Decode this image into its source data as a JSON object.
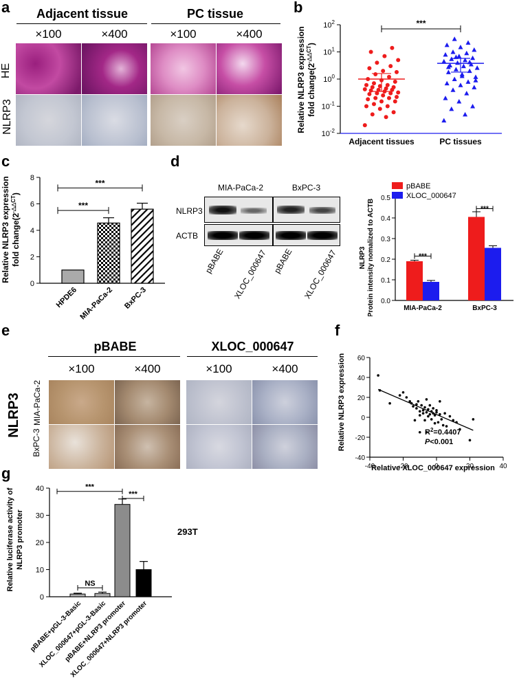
{
  "panel_labels": {
    "a": "a",
    "b": "b",
    "c": "c",
    "d": "d",
    "e": "e",
    "f": "f",
    "g": "g"
  },
  "panel_a": {
    "group1": "Adjacent tissue",
    "group2": "PC tissue",
    "mag_low": "×100",
    "mag_high": "×400",
    "row1": "HE",
    "row2": "NLRP3"
  },
  "panel_e": {
    "group1": "pBABE",
    "group2": "XLOC_000647",
    "mag_low": "×100",
    "mag_high": "×400",
    "stain": "NLRP3",
    "row1": "MIA-PaCa-2",
    "row2": "BxPC-3"
  },
  "panel_d_blot": {
    "cell1": "MIA-PaCa-2",
    "cell2": "BxPC-3",
    "band1": "NLRP3",
    "band2": "ACTB",
    "lanes": [
      "pBABE",
      "XLOC_000647",
      "pBABE",
      "XLOC_000647"
    ]
  },
  "colors": {
    "red": "#ee1c1c",
    "blue": "#1c1cee",
    "he_pink": "#c8358f",
    "ihc_bg": "#cfd4dc"
  },
  "chart_data": [
    {
      "id": "b",
      "type": "scatter",
      "ylabel_line1": "Relative NLRP3 expression",
      "ylabel_line2": "fold change(2",
      "ylabel_sup": "-△△CT",
      "ylabel_end": ")",
      "yscale": "log",
      "ylim": [
        0.01,
        100
      ],
      "yticks": [
        "10-2",
        "10-1",
        "100",
        "101",
        "102"
      ],
      "categories": [
        "Adjacent tissues",
        "PC tissues"
      ],
      "series": [
        {
          "values": [
            0.02,
            0.04,
            0.05,
            0.06,
            0.08,
            0.1,
            0.1,
            0.12,
            0.15,
            0.15,
            0.18,
            0.2,
            0.2,
            0.22,
            0.25,
            0.28,
            0.3,
            0.3,
            0.32,
            0.35,
            0.38,
            0.4,
            0.4,
            0.42,
            0.45,
            0.5,
            0.5,
            0.55,
            0.6,
            0.6,
            0.7,
            0.8,
            0.9,
            1.0,
            1.2,
            1.5,
            1.8,
            2.0,
            2.5,
            3.0,
            4.0,
            5.0,
            7.0,
            10.0,
            14.0
          ],
          "mean": 1.0,
          "sd": [
            0.35,
            1.6
          ]
        },
        {
          "values": [
            0.03,
            0.05,
            0.08,
            0.1,
            0.15,
            0.2,
            0.3,
            0.4,
            0.5,
            0.6,
            0.7,
            0.8,
            1.0,
            1.2,
            1.5,
            1.8,
            2.0,
            2.3,
            2.6,
            3.0,
            3.2,
            3.5,
            4.0,
            4.5,
            5.0,
            5.5,
            6.0,
            7.0,
            8.0,
            9.0,
            10.0,
            12.0,
            15.0,
            18.0,
            22.0,
            30.0,
            0.9,
            1.3,
            2.8,
            4.2,
            6.5
          ],
          "mean": 3.8,
          "sd": [
            1.8,
            5.8
          ]
        }
      ],
      "annotation": "***"
    },
    {
      "id": "c",
      "type": "bar",
      "ylabel_line1": "Relative NLRP3 expression",
      "ylabel_line2": "fold change(2",
      "ylabel_sup": "-△△CT",
      "ylabel_end": ")",
      "ylim": [
        0,
        8
      ],
      "yticks": [
        0,
        2,
        4,
        6,
        8
      ],
      "categories": [
        "HPDE6",
        "MIA-PaCa-2",
        "BxPC-3"
      ],
      "values": [
        1.0,
        4.55,
        5.6
      ],
      "errors": [
        0,
        0.4,
        0.45
      ],
      "annotations": [
        "***",
        "***"
      ]
    },
    {
      "id": "d",
      "type": "bar",
      "ylabel_line1": "NLRP3",
      "ylabel_line2": "Protein intensity nomalized to ACTB",
      "ylim": [
        0,
        0.5
      ],
      "yticks": [
        "0.0",
        "0.1",
        "0.2",
        "0.3",
        "0.4",
        "0.5"
      ],
      "categories": [
        "MIA-PaCa-2",
        "BxPC-3"
      ],
      "series": [
        {
          "name": "pBABE",
          "values": [
            0.19,
            0.405
          ],
          "errors": [
            0.005,
            0.025
          ]
        },
        {
          "name": "XLOC_000647",
          "values": [
            0.09,
            0.255
          ],
          "errors": [
            0.007,
            0.01
          ]
        }
      ],
      "annotations": [
        "***",
        "***"
      ]
    },
    {
      "id": "f",
      "type": "scatter",
      "xlabel": "Relative XLOC_000647 expression",
      "ylabel": "Relative NLRP3 expression",
      "xlim": [
        -40,
        40
      ],
      "ylim": [
        -40,
        60
      ],
      "xticks": [
        -40,
        -20,
        0,
        20,
        40
      ],
      "yticks": [
        -40,
        -20,
        0,
        20,
        40,
        60
      ],
      "r2_text": "=0.4407",
      "r2_label": "R",
      "p_text": "P",
      "p_value": "<0.001",
      "points": [
        [
          -35,
          42
        ],
        [
          -34,
          27
        ],
        [
          -28,
          14
        ],
        [
          -22,
          22
        ],
        [
          -20,
          25
        ],
        [
          -18,
          20
        ],
        [
          -16,
          16
        ],
        [
          -15,
          14
        ],
        [
          -14,
          11
        ],
        [
          -12,
          13
        ],
        [
          -12,
          9
        ],
        [
          -11,
          16
        ],
        [
          -10,
          6
        ],
        [
          -10,
          2
        ],
        [
          -9,
          12
        ],
        [
          -8,
          7
        ],
        [
          -8,
          4
        ],
        [
          -7,
          10
        ],
        [
          -7,
          -3
        ],
        [
          -6,
          5
        ],
        [
          -6,
          18
        ],
        [
          -5,
          8
        ],
        [
          -5,
          1
        ],
        [
          -4,
          3
        ],
        [
          -4,
          12
        ],
        [
          -3,
          6
        ],
        [
          -3,
          -2
        ],
        [
          -2,
          9
        ],
        [
          -2,
          4
        ],
        [
          -1,
          2
        ],
        [
          -1,
          -6
        ],
        [
          0,
          7
        ],
        [
          0,
          5
        ],
        [
          1,
          -5
        ],
        [
          2,
          3
        ],
        [
          2,
          16
        ],
        [
          3,
          -2
        ],
        [
          4,
          -8
        ],
        [
          5,
          4
        ],
        [
          6,
          -9
        ],
        [
          8,
          1
        ],
        [
          10,
          -3
        ],
        [
          12,
          -5
        ],
        [
          14,
          -12
        ],
        [
          20,
          -23
        ],
        [
          22,
          -2
        ],
        [
          -10,
          -15
        ],
        [
          -6,
          -15
        ],
        [
          -13,
          -3
        ]
      ],
      "fit": {
        "x": [
          -35,
          22
        ],
        "y": [
          28,
          -13
        ]
      }
    },
    {
      "id": "g",
      "type": "bar",
      "ylabel_line1": "Relative luciferase activity of",
      "ylabel_line2": "NLRP3 promoter",
      "ylim": [
        0,
        40
      ],
      "yticks": [
        0,
        10,
        20,
        30,
        40
      ],
      "categories": [
        "pBABE+pGL-3-Basic",
        "XLOC_000647+pGL-3-Basic",
        "pBABE+NLRP3 promoter",
        "XLOC_000647+NLRP3 promoter"
      ],
      "values": [
        1.0,
        1.2,
        34.0,
        10.0
      ],
      "errors": [
        0.3,
        0.5,
        2.0,
        3.0
      ],
      "bar_colors": [
        "#b0b0b0",
        "#b0b0b0",
        "#8c8c8c",
        "#000000"
      ],
      "annotations": [
        "NS",
        "***",
        "***"
      ],
      "cell_line": "293T"
    }
  ]
}
